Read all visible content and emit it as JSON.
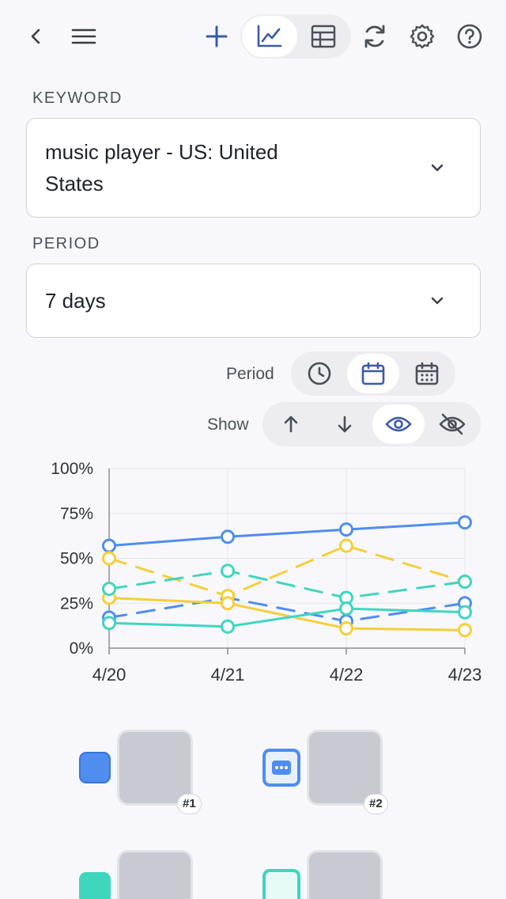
{
  "toolbar": {
    "icons": [
      "back-icon",
      "menu-icon",
      "add-icon",
      "line-chart-icon",
      "table-icon",
      "refresh-icon",
      "settings-icon",
      "help-icon"
    ],
    "active_view": "chart"
  },
  "keyword": {
    "label": "KEYWORD",
    "value_line1": "music player - US: United",
    "value_line2": "States"
  },
  "period": {
    "label": "PERIOD",
    "value": "7 days"
  },
  "period_toggle": {
    "label": "Period",
    "options": [
      "clock-icon",
      "calendar-icon",
      "calendar-grid-icon"
    ],
    "active": "calendar-icon"
  },
  "show_toggle": {
    "label": "Show",
    "options": [
      "arrow-up-icon",
      "arrow-down-icon",
      "eye-icon",
      "eye-off-icon"
    ],
    "active": "eye-icon"
  },
  "colors": {
    "accent": "#3b5aa6",
    "blue": "#4f8df0",
    "yellow": "#f5cf3a",
    "teal": "#3fd6be"
  },
  "chart_data": {
    "type": "line",
    "x": [
      "4/20",
      "4/21",
      "4/22",
      "4/23"
    ],
    "y_ticks": [
      "100%",
      "75%",
      "50%",
      "25%",
      "0%"
    ],
    "ylim": [
      0,
      100
    ],
    "grid": true,
    "series": [
      {
        "color": "#4f8df0",
        "style": "solid",
        "values": [
          57,
          62,
          66,
          70
        ]
      },
      {
        "color": "#4f8df0",
        "style": "dashed",
        "values": [
          17,
          28,
          15,
          25
        ]
      },
      {
        "color": "#f5cf3a",
        "style": "dashed",
        "values": [
          50,
          29,
          57,
          37
        ]
      },
      {
        "color": "#f5cf3a",
        "style": "solid",
        "values": [
          28,
          25,
          11,
          10
        ]
      },
      {
        "color": "#3fd6be",
        "style": "dashed",
        "values": [
          33,
          43,
          28,
          37
        ]
      },
      {
        "color": "#3fd6be",
        "style": "solid",
        "values": [
          14,
          12,
          22,
          20
        ]
      }
    ]
  },
  "legend": [
    {
      "rank": "#1",
      "color": "#4f8df0",
      "swatch": "solid"
    },
    {
      "rank": "#2",
      "color": "#4f8df0",
      "swatch": "dots"
    },
    {
      "rank": "",
      "color": "#3fd6be",
      "swatch": "solid"
    },
    {
      "rank": "",
      "color": "#3fd6be",
      "swatch": "dots"
    }
  ]
}
